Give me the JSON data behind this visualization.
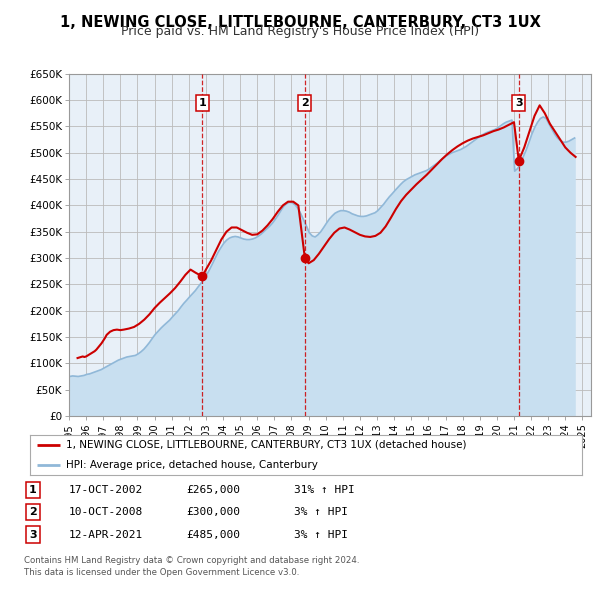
{
  "title": "1, NEWING CLOSE, LITTLEBOURNE, CANTERBURY, CT3 1UX",
  "subtitle": "Price paid vs. HM Land Registry's House Price Index (HPI)",
  "ylim": [
    0,
    650000
  ],
  "yticks": [
    0,
    50000,
    100000,
    150000,
    200000,
    250000,
    300000,
    350000,
    400000,
    450000,
    500000,
    550000,
    600000,
    650000
  ],
  "ytick_labels": [
    "£0",
    "£50K",
    "£100K",
    "£150K",
    "£200K",
    "£250K",
    "£300K",
    "£350K",
    "£400K",
    "£450K",
    "£500K",
    "£550K",
    "£600K",
    "£650K"
  ],
  "xlim_start": 1995.0,
  "xlim_end": 2025.5,
  "xtick_years": [
    1995,
    1996,
    1997,
    1998,
    1999,
    2000,
    2001,
    2002,
    2003,
    2004,
    2005,
    2006,
    2007,
    2008,
    2009,
    2010,
    2011,
    2012,
    2013,
    2014,
    2015,
    2016,
    2017,
    2018,
    2019,
    2020,
    2021,
    2022,
    2023,
    2024,
    2025
  ],
  "sale_color": "#cc0000",
  "hpi_color": "#90b8d8",
  "hpi_fill_color": "#c8dff0",
  "background_color": "#ffffff",
  "chart_bg_color": "#e8f0f8",
  "grid_color": "#bbbbbb",
  "title_fontsize": 11,
  "subtitle_fontsize": 9.5,
  "legend_label_sale": "1, NEWING CLOSE, LITTLEBOURNE, CANTERBURY, CT3 1UX (detached house)",
  "legend_label_hpi": "HPI: Average price, detached house, Canterbury",
  "sale_marker_color": "#cc0000",
  "vline_color": "#cc0000",
  "transactions": [
    {
      "num": 1,
      "date": 2002.79,
      "price": 265000,
      "label": "1",
      "date_str": "17-OCT-2002",
      "price_str": "£265,000",
      "pct_str": "31% ↑ HPI"
    },
    {
      "num": 2,
      "date": 2008.78,
      "price": 300000,
      "label": "2",
      "date_str": "10-OCT-2008",
      "price_str": "£300,000",
      "pct_str": "3% ↑ HPI"
    },
    {
      "num": 3,
      "date": 2021.28,
      "price": 485000,
      "label": "3",
      "date_str": "12-APR-2021",
      "price_str": "£485,000",
      "pct_str": "3% ↑ HPI"
    }
  ],
  "footnote1": "Contains HM Land Registry data © Crown copyright and database right 2024.",
  "footnote2": "This data is licensed under the Open Government Licence v3.0.",
  "hpi_data": {
    "years": [
      1995.04,
      1995.21,
      1995.38,
      1995.54,
      1995.71,
      1995.88,
      1996.04,
      1996.21,
      1996.38,
      1996.54,
      1996.71,
      1996.88,
      1997.04,
      1997.21,
      1997.38,
      1997.54,
      1997.71,
      1997.88,
      1998.04,
      1998.21,
      1998.38,
      1998.54,
      1998.71,
      1998.88,
      1999.04,
      1999.21,
      1999.38,
      1999.54,
      1999.71,
      1999.88,
      2000.04,
      2000.21,
      2000.38,
      2000.54,
      2000.71,
      2000.88,
      2001.04,
      2001.21,
      2001.38,
      2001.54,
      2001.71,
      2001.88,
      2002.04,
      2002.21,
      2002.38,
      2002.54,
      2002.71,
      2002.88,
      2003.04,
      2003.21,
      2003.38,
      2003.54,
      2003.71,
      2003.88,
      2004.04,
      2004.21,
      2004.38,
      2004.54,
      2004.71,
      2004.88,
      2005.04,
      2005.21,
      2005.38,
      2005.54,
      2005.71,
      2005.88,
      2006.04,
      2006.21,
      2006.38,
      2006.54,
      2006.71,
      2006.88,
      2007.04,
      2007.21,
      2007.38,
      2007.54,
      2007.71,
      2007.88,
      2008.04,
      2008.21,
      2008.38,
      2008.54,
      2008.71,
      2008.88,
      2009.04,
      2009.21,
      2009.38,
      2009.54,
      2009.71,
      2009.88,
      2010.04,
      2010.21,
      2010.38,
      2010.54,
      2010.71,
      2010.88,
      2011.04,
      2011.21,
      2011.38,
      2011.54,
      2011.71,
      2011.88,
      2012.04,
      2012.21,
      2012.38,
      2012.54,
      2012.71,
      2012.88,
      2013.04,
      2013.21,
      2013.38,
      2013.54,
      2013.71,
      2013.88,
      2014.04,
      2014.21,
      2014.38,
      2014.54,
      2014.71,
      2014.88,
      2015.04,
      2015.21,
      2015.38,
      2015.54,
      2015.71,
      2015.88,
      2016.04,
      2016.21,
      2016.38,
      2016.54,
      2016.71,
      2016.88,
      2017.04,
      2017.21,
      2017.38,
      2017.54,
      2017.71,
      2017.88,
      2018.04,
      2018.21,
      2018.38,
      2018.54,
      2018.71,
      2018.88,
      2019.04,
      2019.21,
      2019.38,
      2019.54,
      2019.71,
      2019.88,
      2020.04,
      2020.21,
      2020.38,
      2020.54,
      2020.71,
      2020.88,
      2021.04,
      2021.21,
      2021.38,
      2021.54,
      2021.71,
      2021.88,
      2022.04,
      2022.21,
      2022.38,
      2022.54,
      2022.71,
      2022.88,
      2023.04,
      2023.21,
      2023.38,
      2023.54,
      2023.71,
      2023.88,
      2024.04,
      2024.21,
      2024.38,
      2024.54
    ],
    "values": [
      75000,
      76000,
      75500,
      75000,
      76000,
      77000,
      79000,
      80000,
      82000,
      84000,
      86000,
      88000,
      91000,
      94000,
      97000,
      100000,
      103000,
      106000,
      108000,
      110000,
      112000,
      113000,
      114000,
      115000,
      118000,
      122000,
      127000,
      133000,
      140000,
      148000,
      155000,
      161000,
      167000,
      172000,
      177000,
      182000,
      188000,
      194000,
      200000,
      207000,
      214000,
      220000,
      226000,
      232000,
      238000,
      245000,
      252000,
      260000,
      268000,
      278000,
      289000,
      300000,
      311000,
      320000,
      328000,
      334000,
      338000,
      340000,
      341000,
      340000,
      338000,
      336000,
      335000,
      335000,
      336000,
      338000,
      341000,
      345000,
      350000,
      355000,
      360000,
      366000,
      373000,
      381000,
      390000,
      398000,
      403000,
      406000,
      405000,
      401000,
      394000,
      384000,
      372000,
      360000,
      348000,
      342000,
      340000,
      344000,
      350000,
      358000,
      366000,
      374000,
      380000,
      385000,
      388000,
      390000,
      390000,
      389000,
      387000,
      384000,
      382000,
      380000,
      379000,
      379000,
      380000,
      382000,
      384000,
      386000,
      390000,
      396000,
      402000,
      409000,
      416000,
      422000,
      428000,
      434000,
      440000,
      445000,
      449000,
      452000,
      455000,
      458000,
      460000,
      462000,
      464000,
      466000,
      469000,
      473000,
      477000,
      481000,
      486000,
      490000,
      494000,
      497000,
      500000,
      502000,
      504000,
      506000,
      509000,
      512000,
      516000,
      520000,
      524000,
      528000,
      532000,
      535000,
      538000,
      540000,
      542000,
      544000,
      547000,
      551000,
      555000,
      558000,
      560000,
      562000,
      465000,
      470000,
      480000,
      492000,
      505000,
      520000,
      535000,
      548000,
      558000,
      565000,
      568000,
      565000,
      555000,
      545000,
      535000,
      528000,
      523000,
      520000,
      520000,
      522000,
      525000,
      528000
    ]
  },
  "sale_data": {
    "years": [
      1995.5,
      1995.6,
      1995.7,
      1995.8,
      1995.9,
      1996.0,
      1996.1,
      1996.2,
      1996.3,
      1996.4,
      1996.5,
      1996.6,
      1996.7,
      1996.8,
      1996.9,
      1997.0,
      1997.1,
      1997.2,
      1997.4,
      1997.6,
      1997.8,
      1998.0,
      1998.2,
      1998.5,
      1998.8,
      1999.1,
      1999.4,
      1999.7,
      2000.0,
      2000.3,
      2000.6,
      2000.9,
      2001.2,
      2001.5,
      2001.8,
      2002.1,
      2002.4,
      2002.79,
      2003.0,
      2003.3,
      2003.6,
      2003.9,
      2004.2,
      2004.5,
      2004.8,
      2005.1,
      2005.4,
      2005.7,
      2006.0,
      2006.3,
      2006.6,
      2006.9,
      2007.2,
      2007.5,
      2007.8,
      2008.1,
      2008.4,
      2008.78,
      2009.0,
      2009.3,
      2009.6,
      2009.9,
      2010.2,
      2010.5,
      2010.8,
      2011.1,
      2011.4,
      2011.7,
      2012.0,
      2012.3,
      2012.6,
      2012.9,
      2013.2,
      2013.5,
      2013.8,
      2014.1,
      2014.4,
      2014.7,
      2015.0,
      2015.3,
      2015.6,
      2015.9,
      2016.2,
      2016.5,
      2016.8,
      2017.1,
      2017.4,
      2017.7,
      2018.0,
      2018.3,
      2018.6,
      2018.9,
      2019.2,
      2019.5,
      2019.8,
      2020.1,
      2020.4,
      2020.7,
      2021.0,
      2021.28,
      2021.6,
      2021.9,
      2022.2,
      2022.5,
      2022.8,
      2023.1,
      2023.4,
      2023.7,
      2024.0,
      2024.3,
      2024.6
    ],
    "values": [
      110000,
      111000,
      112000,
      113000,
      112000,
      113000,
      115000,
      117000,
      119000,
      121000,
      123000,
      126000,
      130000,
      134000,
      138000,
      143000,
      148000,
      154000,
      160000,
      163000,
      164000,
      163000,
      164000,
      166000,
      169000,
      175000,
      183000,
      193000,
      205000,
      215000,
      224000,
      233000,
      243000,
      255000,
      268000,
      278000,
      272000,
      265000,
      278000,
      295000,
      315000,
      335000,
      350000,
      358000,
      358000,
      353000,
      348000,
      344000,
      345000,
      352000,
      362000,
      374000,
      388000,
      400000,
      407000,
      407000,
      400000,
      300000,
      290000,
      296000,
      308000,
      322000,
      336000,
      348000,
      356000,
      358000,
      354000,
      349000,
      344000,
      341000,
      340000,
      342000,
      348000,
      360000,
      376000,
      393000,
      408000,
      420000,
      430000,
      440000,
      449000,
      458000,
      468000,
      478000,
      488000,
      497000,
      505000,
      512000,
      518000,
      523000,
      527000,
      530000,
      533000,
      537000,
      541000,
      544000,
      548000,
      553000,
      558000,
      485000,
      510000,
      540000,
      570000,
      590000,
      575000,
      555000,
      540000,
      525000,
      510000,
      500000,
      492000
    ]
  }
}
